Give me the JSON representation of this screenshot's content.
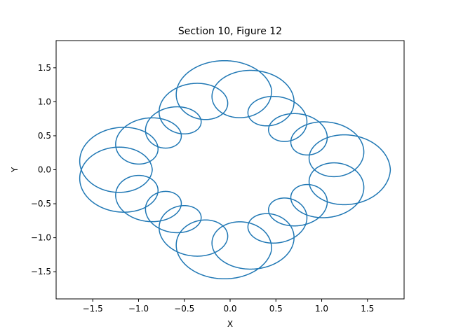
{
  "chart_data": {
    "type": "line",
    "title": "Section 10, Figure 12",
    "xlabel": "X",
    "ylabel": "Y",
    "xlim": [
      -1.9,
      1.9
    ],
    "ylim": [
      -1.9,
      1.9
    ],
    "xticks": [
      -1.5,
      -1.0,
      -0.5,
      0.0,
      0.5,
      1.0,
      1.5
    ],
    "yticks": [
      -1.5,
      -1.0,
      -0.5,
      0.0,
      0.5,
      1.0,
      1.5
    ],
    "xtick_labels": [
      "−1.5",
      "−1.0",
      "−0.5",
      "0.0",
      "0.5",
      "1.0",
      "1.5"
    ],
    "ytick_labels": [
      "−1.5",
      "−1.0",
      "−0.5",
      "0.0",
      "0.5",
      "1.0",
      "1.5"
    ],
    "grid": false,
    "legend": "none",
    "series": [
      {
        "color": "#1f77b4",
        "curve": "rosette / epitrochoid-like closed curve",
        "extent": {
          "x": [
            -1.73,
            1.73
          ],
          "y": [
            -1.73,
            1.73
          ]
        },
        "inner_loops_centers": [
          [
            -0.55,
            0.55
          ],
          [
            0.55,
            0.55
          ],
          [
            -0.55,
            -0.55
          ],
          [
            0.55,
            -0.55
          ]
        ]
      }
    ]
  }
}
